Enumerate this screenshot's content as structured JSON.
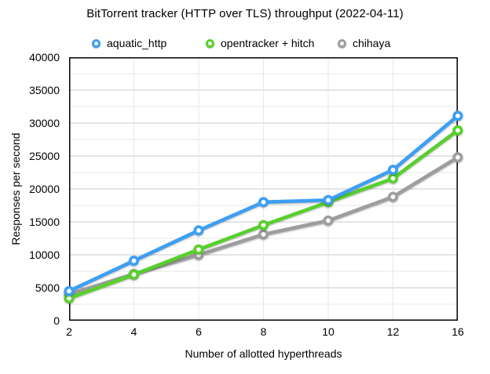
{
  "title": "BitTorrent tracker (HTTP over TLS) throughput (2022-04-11)",
  "chart_data": {
    "type": "line",
    "title": "BitTorrent tracker (HTTP over TLS) throughput (2022-04-11)",
    "categories": [
      "2",
      "4",
      "6",
      "8",
      "10",
      "12",
      "16"
    ],
    "series": [
      {
        "name": "aquatic_http",
        "color": "#3b9ff5",
        "values": [
          4500,
          9100,
          13700,
          18000,
          18300,
          22900,
          31100
        ]
      },
      {
        "name": "opentracker + hitch",
        "color": "#57d02b",
        "values": [
          3400,
          7000,
          10800,
          14500,
          18000,
          21600,
          28900
        ]
      },
      {
        "name": "chihaya",
        "color": "#9d9d9d",
        "values": [
          4000,
          7100,
          10000,
          13100,
          15200,
          18800,
          24800
        ]
      }
    ],
    "xlabel": "Number of allotted hyperthreads",
    "ylabel": "Responses per second",
    "ylim": [
      0,
      40000
    ],
    "y_major_step": 5000,
    "y_minor_step": 2500,
    "y_tick_labels": [
      "0",
      "5000",
      "10000",
      "15000",
      "20000",
      "25000",
      "30000",
      "35000",
      "40000"
    ],
    "x_tick_labels": [
      "2",
      "4",
      "6",
      "8",
      "10",
      "12",
      "16"
    ],
    "legend_position": "top",
    "grid": true,
    "colors": {
      "major_grid": "#c9c9c9",
      "minor_grid": "#e7e7e7",
      "axis_border": "#000000",
      "background": "#ffffff"
    }
  }
}
